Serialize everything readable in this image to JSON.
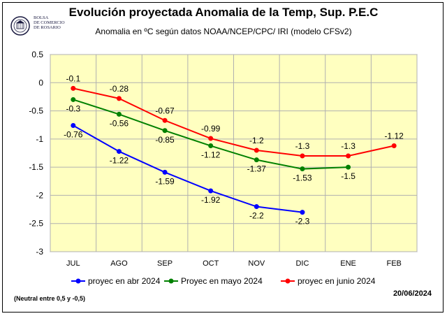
{
  "logo": {
    "icon": "bolsa-de-comercio-seal",
    "line1": "BOLSA",
    "line2": "DE COMERCIO",
    "line3": "DE ROSARIO"
  },
  "footnote": "(Neutral entre 0,5 y -0,5)",
  "date": "20/06/2024",
  "chart_data": {
    "type": "line",
    "title": "Evolución proyectada Anomalia de la Temp, Sup.  P.E.C",
    "subtitle": "Anomalia en ºC según datos NOAA/NCEP/CPC/ IRI (modelo CFSv2)",
    "categories": [
      "JUL",
      "AGO",
      "SEP",
      "OCT",
      "NOV",
      "DIC",
      "ENE",
      "FEB"
    ],
    "ylim": [
      -3,
      0.5
    ],
    "yticks": [
      0.5,
      0,
      -0.5,
      -1,
      -1.5,
      -2,
      -2.5,
      -3
    ],
    "ytick_labels": [
      "0.5",
      "0",
      "-0.5",
      "-1",
      "-1.5",
      "-2",
      "-2.5",
      "-3"
    ],
    "grid": true,
    "legend_position": "bottom",
    "series": [
      {
        "name": "proyec en abr 2024",
        "color": "#0000ff",
        "values": [
          -0.76,
          -1.22,
          -1.59,
          -1.92,
          -2.2,
          -2.3,
          null,
          null
        ],
        "labels": [
          "-0.76",
          "-1.22",
          "-1.59",
          "-1.92",
          "-2.2",
          "-2.3",
          "",
          ""
        ],
        "label_position": "below"
      },
      {
        "name": "Proyec en mayo 2024",
        "color": "#008000",
        "values": [
          -0.3,
          -0.56,
          -0.85,
          -1.12,
          -1.37,
          -1.53,
          -1.5,
          null
        ],
        "labels": [
          "-0.3",
          "-0.56",
          "-0.85",
          "-1.12",
          "-1.37",
          "-1.53",
          "-1.5",
          ""
        ],
        "label_position": "below"
      },
      {
        "name": "proyec en  junio 2024",
        "color": "#ff0000",
        "values": [
          -0.1,
          -0.28,
          -0.67,
          -0.99,
          -1.2,
          -1.3,
          -1.3,
          -1.12
        ],
        "labels": [
          "-0.1",
          "-0.28",
          "-0.67",
          "-0.99",
          "-1.2",
          "-1.3",
          "-1.3",
          "-1.12"
        ],
        "label_position": "above"
      }
    ]
  }
}
